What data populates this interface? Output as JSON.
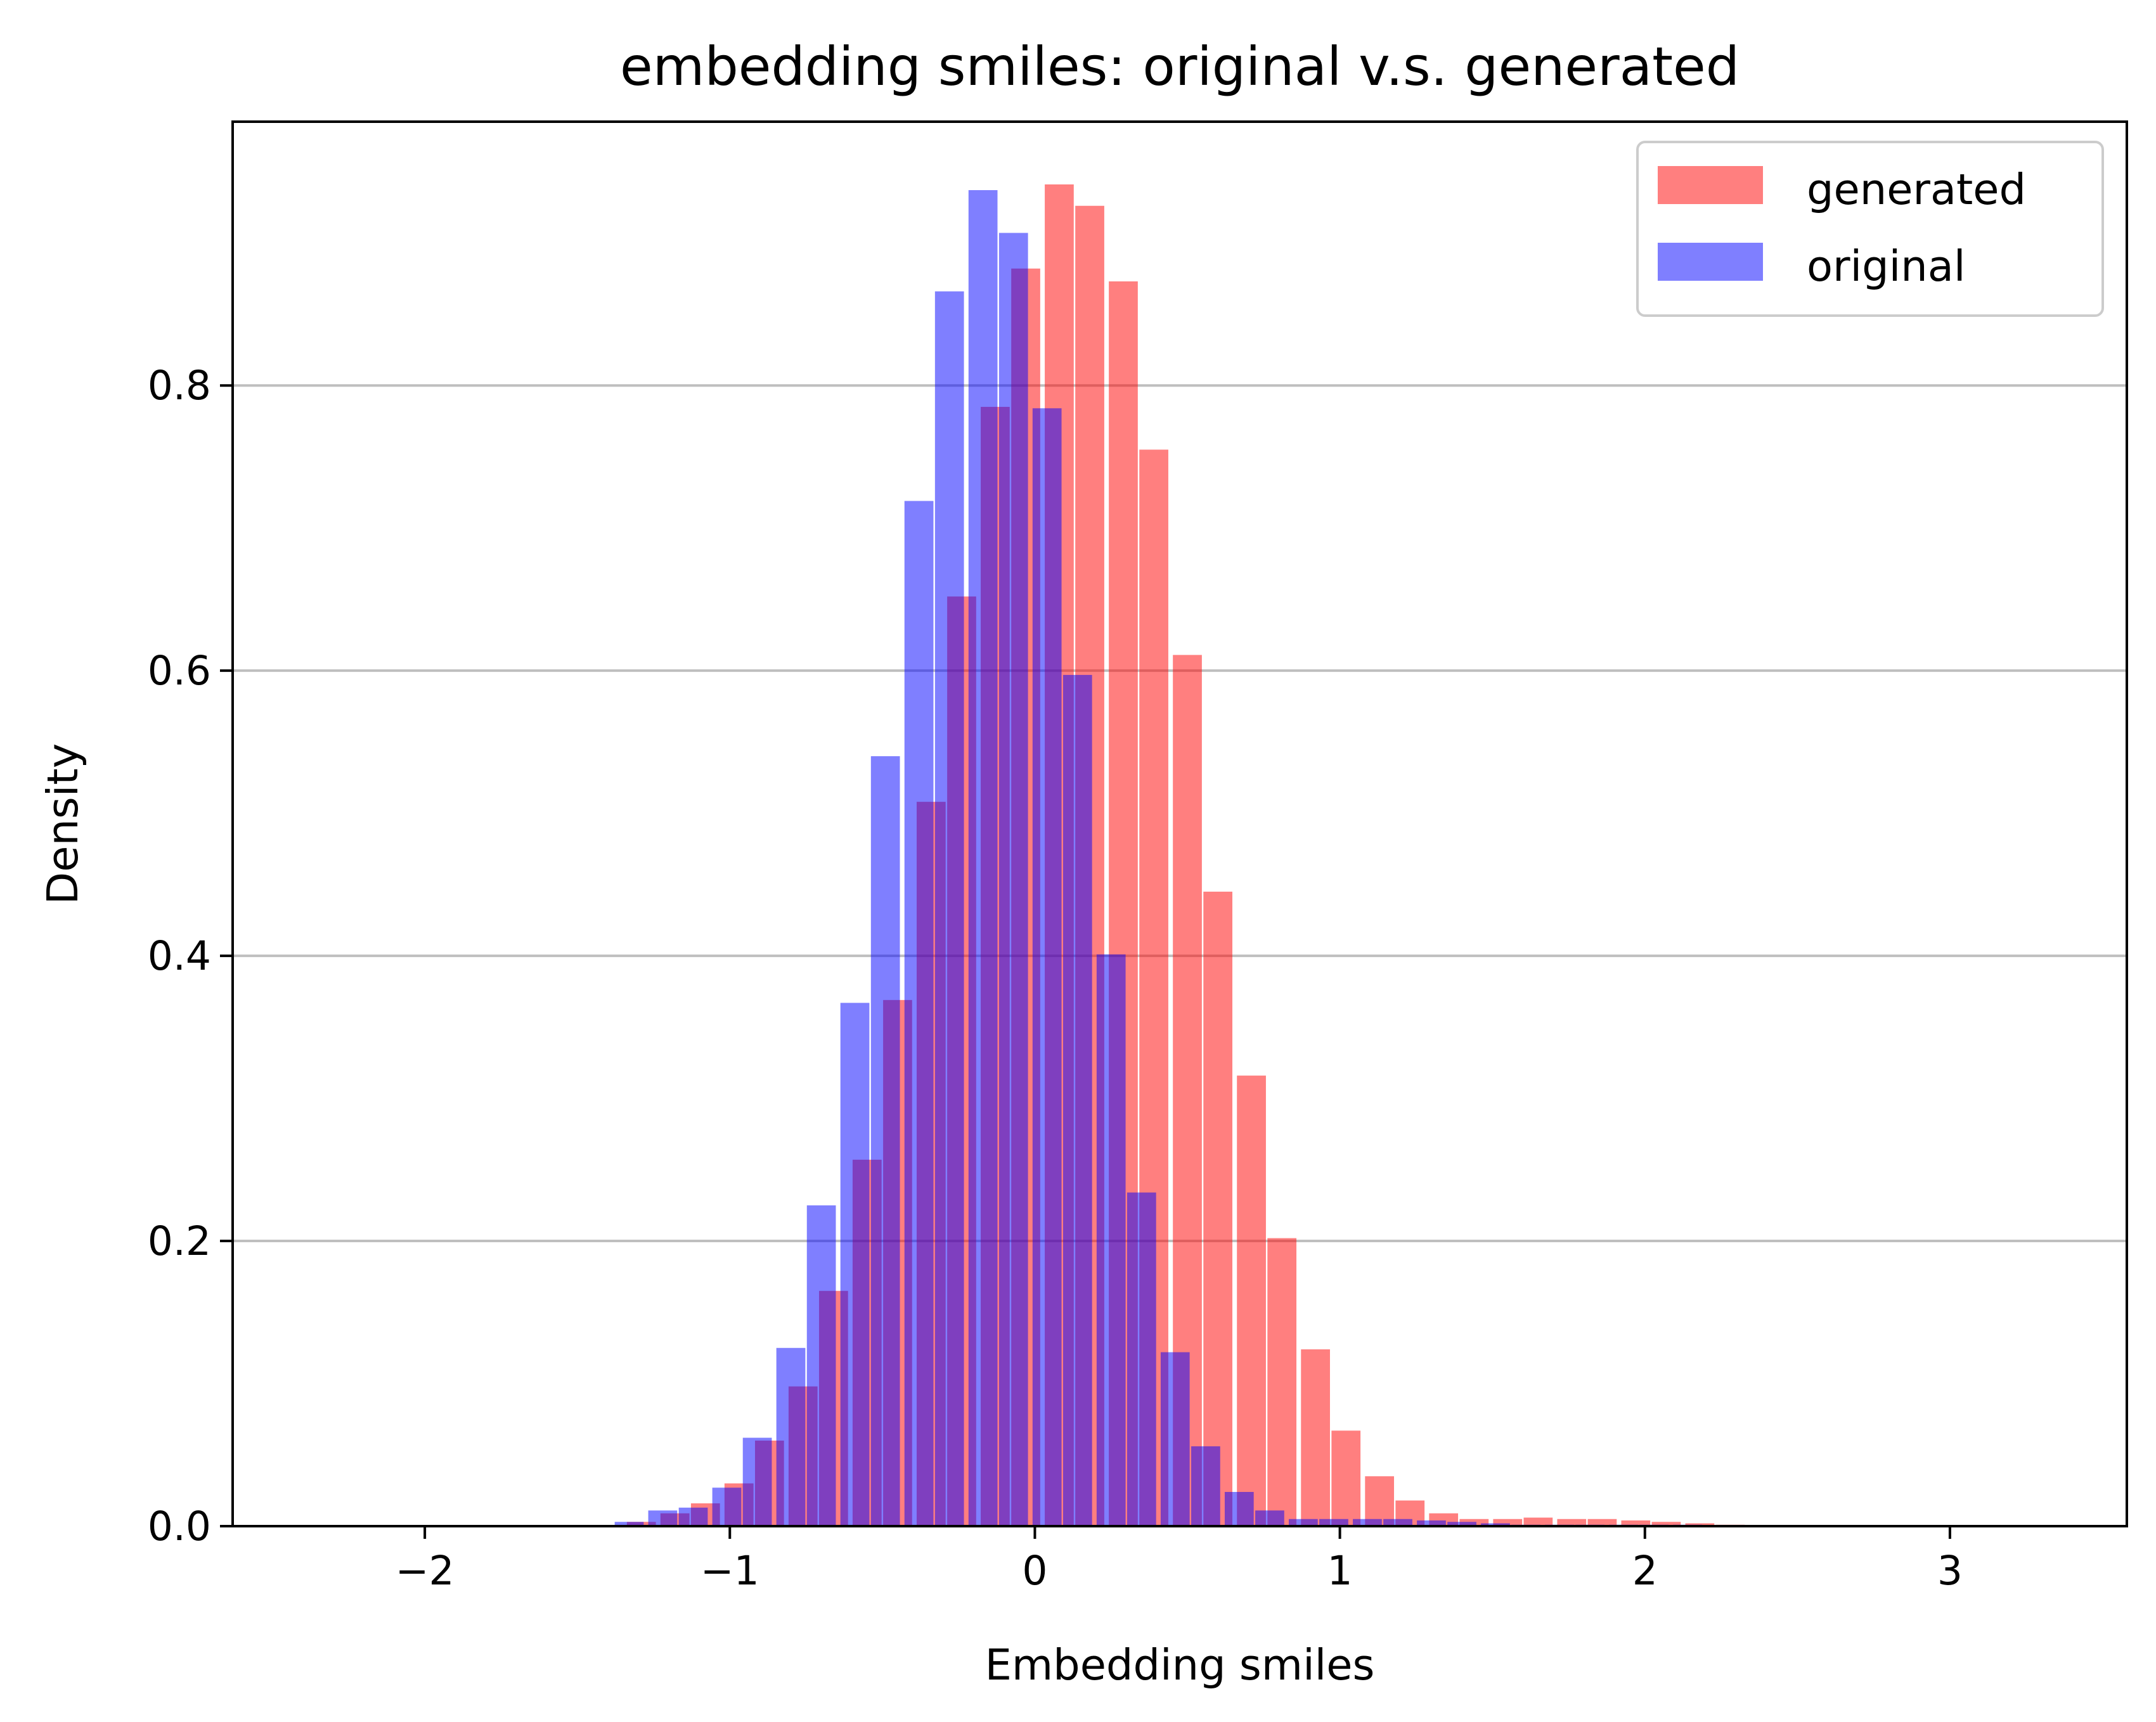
{
  "chart_data": {
    "type": "bar",
    "title": "embedding smiles: original v.s. generated",
    "xlabel": "Embedding smiles",
    "ylabel": "Density",
    "xlim": [
      -2.63,
      3.58
    ],
    "ylim": [
      0,
      0.985
    ],
    "xticks": [
      -2,
      -1,
      0,
      1,
      2,
      3
    ],
    "xtick_labels": [
      "−2",
      "−1",
      "0",
      "1",
      "2",
      "3"
    ],
    "yticks": [
      0.0,
      0.2,
      0.4,
      0.6,
      0.8
    ],
    "ytick_labels": [
      "0.0",
      "0.2",
      "0.4",
      "0.6",
      "0.8"
    ],
    "grid": "y",
    "legend": "top-right",
    "bar_width": 0.095,
    "series": [
      {
        "name": "generated",
        "color": "#ff0000",
        "alpha": 0.5,
        "x": [
          -1.29,
          -1.18,
          -1.08,
          -0.97,
          -0.87,
          -0.76,
          -0.66,
          -0.55,
          -0.45,
          -0.34,
          -0.24,
          -0.13,
          -0.03,
          0.08,
          0.18,
          0.29,
          0.39,
          0.5,
          0.6,
          0.71,
          0.81,
          0.92,
          1.02,
          1.13,
          1.23,
          1.34,
          1.44,
          1.55,
          1.65,
          1.76,
          1.86,
          1.97,
          2.07,
          2.18,
          2.28
        ],
        "values": [
          0.003,
          0.009,
          0.016,
          0.03,
          0.06,
          0.098,
          0.165,
          0.257,
          0.369,
          0.508,
          0.652,
          0.785,
          0.882,
          0.941,
          0.926,
          0.873,
          0.755,
          0.611,
          0.445,
          0.316,
          0.202,
          0.124,
          0.067,
          0.035,
          0.018,
          0.009,
          0.005,
          0.005,
          0.006,
          0.005,
          0.005,
          0.004,
          0.003,
          0.002,
          0.001
        ]
      },
      {
        "name": "original",
        "color": "#0000ff",
        "alpha": 0.5,
        "x": [
          -1.33,
          -1.22,
          -1.12,
          -1.01,
          -0.91,
          -0.8,
          -0.7,
          -0.59,
          -0.49,
          -0.38,
          -0.28,
          -0.17,
          -0.07,
          0.04,
          0.14,
          0.25,
          0.35,
          0.46,
          0.56,
          0.67,
          0.77,
          0.88,
          0.98,
          1.09,
          1.19,
          1.3,
          1.4,
          1.51,
          1.61,
          1.72,
          1.82,
          1.93,
          2.03,
          2.14
        ],
        "values": [
          0.003,
          0.011,
          0.013,
          0.027,
          0.062,
          0.125,
          0.225,
          0.367,
          0.54,
          0.719,
          0.866,
          0.937,
          0.907,
          0.784,
          0.597,
          0.401,
          0.234,
          0.122,
          0.056,
          0.024,
          0.011,
          0.005,
          0.005,
          0.005,
          0.005,
          0.004,
          0.003,
          0.002,
          0.001,
          0.001,
          0.001,
          0.001,
          0.001,
          0.001
        ]
      }
    ]
  }
}
